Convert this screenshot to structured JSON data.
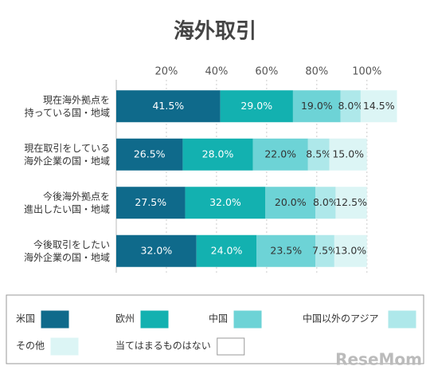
{
  "chart_data": {
    "type": "stacked-bar-horizontal",
    "title": "海外取引",
    "categories": [
      "現在海外拠点を\n持っている国・地域",
      "現在取引をしている\n海外企業の国・地域",
      "今後海外拠点を\n進出したい国・地域",
      "今後取引をしたい\n海外企業の国・地域"
    ],
    "series": [
      {
        "name": "米国",
        "color": "#0f6a8b",
        "values": [
          41.5,
          26.5,
          27.5,
          32.0
        ],
        "value_labels": [
          "41.5%",
          "26.5%",
          "27.5%",
          "32.0%"
        ]
      },
      {
        "name": "欧州",
        "color": "#13b1b0",
        "values": [
          29.0,
          28.0,
          32.0,
          24.0
        ],
        "value_labels": [
          "29.0%",
          "28.0%",
          "32.0%",
          "24.0%"
        ]
      },
      {
        "name": "中国",
        "color": "#6dd3d6",
        "values": [
          19.0,
          22.0,
          20.0,
          23.5
        ],
        "value_labels": [
          "19.0%",
          "22.0%",
          "20.0%",
          "23.5%"
        ]
      },
      {
        "name": "中国以外のアジア",
        "color": "#aee8ea",
        "values": [
          8.0,
          8.5,
          8.0,
          7.5
        ],
        "value_labels": [
          "8.0%",
          "8.5%",
          "8.0%",
          "7.5%"
        ]
      },
      {
        "name": "その他",
        "color": "#dcf5f5",
        "values": [
          14.5,
          15.0,
          12.5,
          13.0
        ],
        "value_labels": [
          "14.5%",
          "15.0%",
          "12.5%",
          "13.0%"
        ]
      },
      {
        "name": "当てはまるものはない",
        "color": "#ffffff",
        "values": [
          null,
          null,
          null,
          null
        ]
      }
    ],
    "xlim": [
      0,
      115
    ],
    "xticks": [
      {
        "value": 20,
        "label": "20%"
      },
      {
        "value": 40,
        "label": "40%"
      },
      {
        "value": 60,
        "label": "60%"
      },
      {
        "value": 80,
        "label": "80%"
      },
      {
        "value": 100,
        "label": "100%"
      }
    ],
    "grid": true,
    "legend": "bottom",
    "watermark": "ReseMom"
  }
}
